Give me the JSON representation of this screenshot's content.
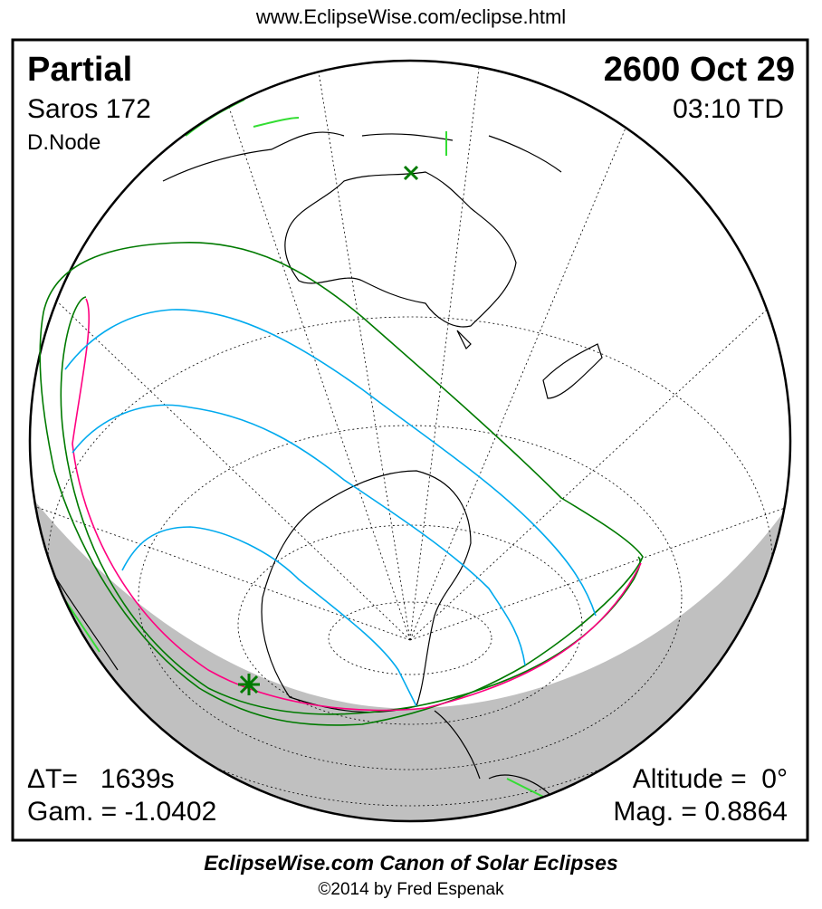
{
  "header": {
    "url": "www.EclipseWise.com/eclipse.html"
  },
  "eclipse": {
    "type": "Partial",
    "date": "2600 Oct 29",
    "saros": "Saros 172",
    "time": "03:10 TD",
    "node": "D.Node",
    "delta_t": "ΔT=   1639s",
    "gamma": "Gam. = -1.0402",
    "altitude": "Altitude =  0°",
    "magnitude": "Mag. = 0.8864"
  },
  "footer": {
    "canon": "EclipseWise.com Canon of Solar Eclipses",
    "copyright": "©2014 by Fred Espenak"
  },
  "colors": {
    "penumbra_limit": "#007a00",
    "magenta_limit": "#ff0080",
    "cyan_curves": "#00aaee",
    "night": "#c0c0c0",
    "sunrise_marker": "#007a00"
  },
  "icons": {
    "greatest_eclipse_marker": "x-mark-icon",
    "sun_marker": "asterisk-sun-icon"
  }
}
